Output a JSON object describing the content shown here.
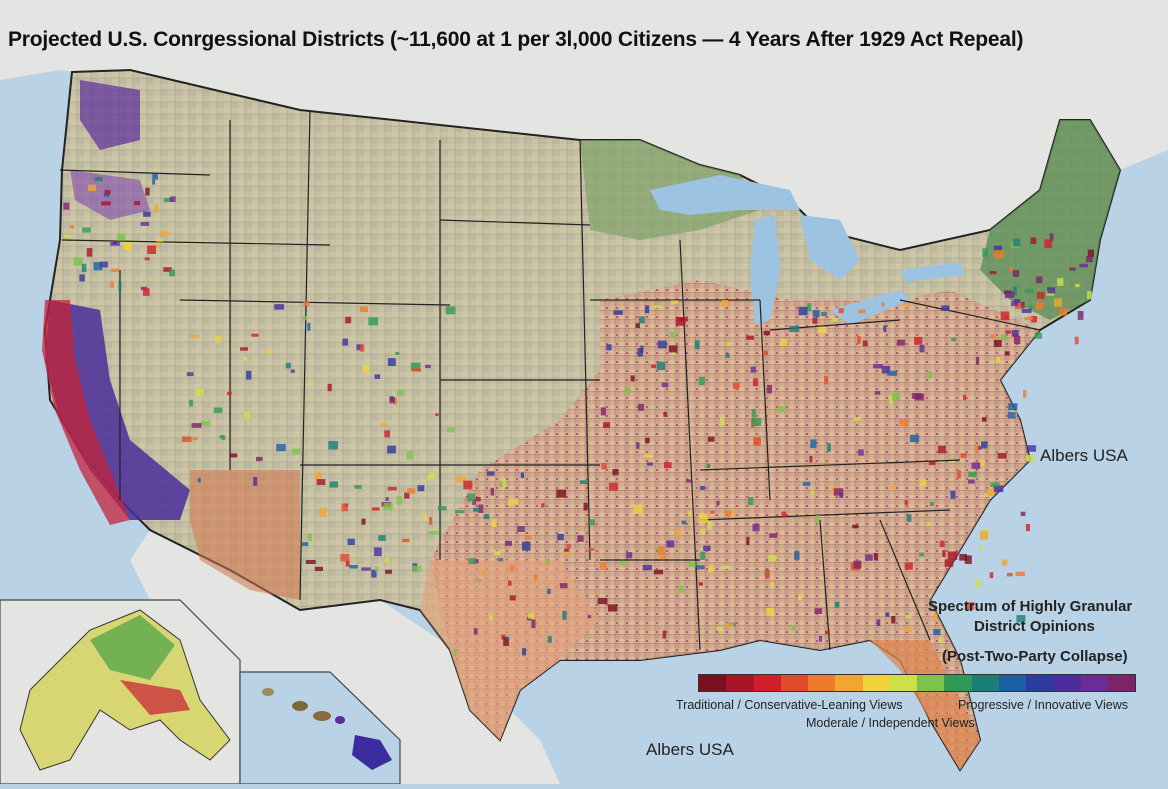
{
  "title": "Projected U.S. Conrgessional Districts (~11,600 at 1 per 3l,000 Citizens — 4 Years After 1929 Act Repeal)",
  "projection_labels": {
    "east": "Albers USA",
    "bottom": "Albers USA"
  },
  "legend": {
    "title_line1": "Spectrum of Highly Granular",
    "title_line2": "District Opinions",
    "title_line3": "(Post-Two-Party Collapse)",
    "label_left": "Traditional / Conservative-Leaning Views",
    "label_right": "Progressive / Innovative Views",
    "label_center": "Moderale / Independent Views",
    "colors": [
      "#7a0f1f",
      "#a81428",
      "#d11f2a",
      "#e24a2c",
      "#ef7a2e",
      "#f3a531",
      "#efd33a",
      "#cde04a",
      "#7cc34b",
      "#2f9a55",
      "#1b7f78",
      "#1d5fa7",
      "#2b3c9e",
      "#4f2c9e",
      "#6d2b95",
      "#7e2369"
    ]
  },
  "map": {
    "ocean_color": "#b9d2e6",
    "land_color": "#c9c6ad",
    "neighbor_land_color": "#e4e4e2",
    "lake_color": "#9dc3e3",
    "regions": [
      "contiguous-us",
      "alaska-inset",
      "hawaii-inset",
      "canada",
      "mexico"
    ]
  }
}
